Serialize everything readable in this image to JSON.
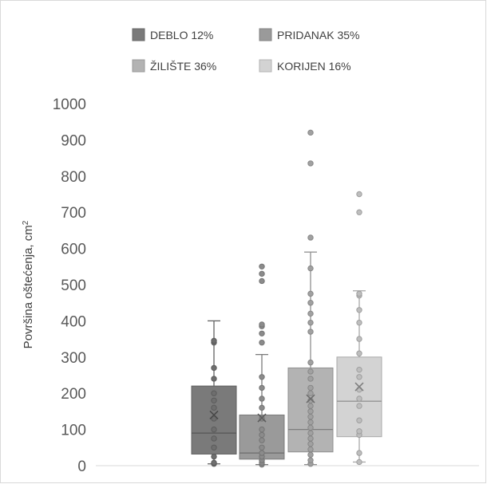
{
  "chart_data": {
    "type": "box",
    "ylabel": "Površina oštećenja, cm",
    "ylabel_superscript": "2",
    "ylim": [
      0,
      1000
    ],
    "yticks": [
      0,
      100,
      200,
      300,
      400,
      500,
      600,
      700,
      800,
      900,
      1000
    ],
    "grid": false,
    "legend_position": "top",
    "series": [
      {
        "name": "DEBLO 12%",
        "color": "#7a7a7a",
        "whisker_low": 5,
        "q1": 32,
        "median": 90,
        "q3": 220,
        "whisker_high": 400,
        "mean": 140,
        "points": [
          5,
          8,
          25,
          50,
          75,
          100,
          130,
          160,
          180,
          200,
          240,
          270,
          340,
          345
        ]
      },
      {
        "name": "PRIDANAK 35%",
        "color": "#9a9a9a",
        "whisker_low": 3,
        "q1": 18,
        "median": 35,
        "q3": 140,
        "whisker_high": 307,
        "mean": 132,
        "points": [
          3,
          8,
          15,
          25,
          35,
          50,
          70,
          85,
          100,
          130,
          160,
          185,
          215,
          245,
          340,
          365,
          385,
          390,
          510,
          530,
          550
        ]
      },
      {
        "name": "ŽILIŠTE 36%",
        "color": "#b3b3b3",
        "whisker_low": 3,
        "q1": 38,
        "median": 100,
        "q3": 270,
        "whisker_high": 590,
        "mean": 185,
        "points": [
          5,
          15,
          30,
          45,
          60,
          75,
          90,
          105,
          120,
          135,
          150,
          165,
          180,
          200,
          215,
          240,
          260,
          285,
          370,
          395,
          420,
          450,
          475,
          545,
          630,
          835,
          920
        ]
      },
      {
        "name": "KORIJEN 16%",
        "color": "#d3d3d3",
        "whisker_low": 10,
        "q1": 80,
        "median": 178,
        "q3": 300,
        "whisker_high": 483,
        "mean": 218,
        "points": [
          10,
          35,
          85,
          95,
          125,
          165,
          185,
          210,
          245,
          265,
          310,
          350,
          395,
          430,
          470,
          475,
          700,
          750
        ]
      }
    ]
  }
}
